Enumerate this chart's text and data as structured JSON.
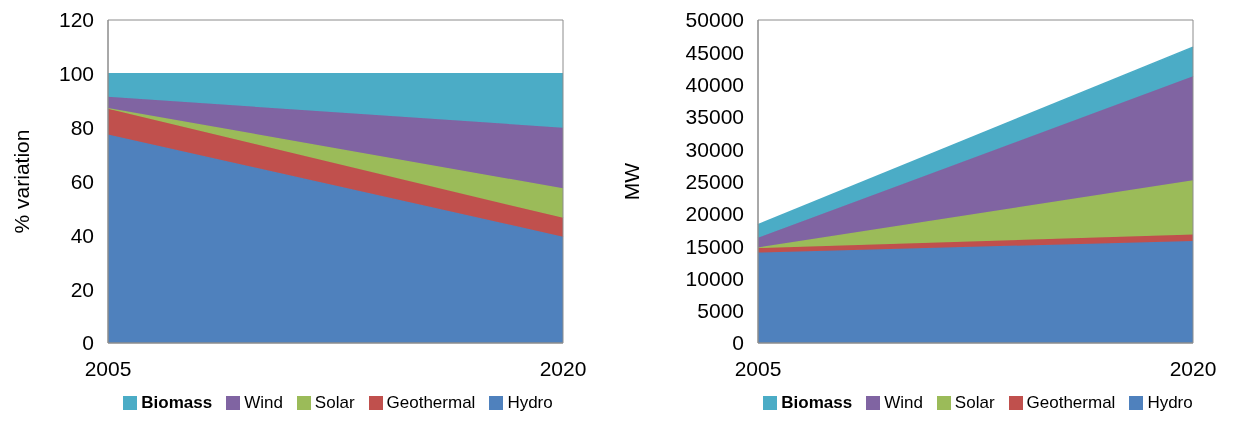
{
  "chart_data": [
    {
      "type": "area",
      "stacked": true,
      "categories": [
        "2005",
        "2020"
      ],
      "ylabel": "% variation",
      "ylim": [
        0,
        120
      ],
      "yticks": [
        0,
        20,
        40,
        60,
        80,
        100,
        120
      ],
      "grid": true,
      "legend": "bottom",
      "series": [
        {
          "name": "Hydro",
          "color": "#4f81bd",
          "values": [
            77.5,
            39.5
          ]
        },
        {
          "name": "Geothermal",
          "color": "#c0504d",
          "values": [
            9.5,
            7
          ]
        },
        {
          "name": "Solar",
          "color": "#9bbb59",
          "values": [
            0.3,
            11
          ]
        },
        {
          "name": "Wind",
          "color": "#8064a2",
          "values": [
            4.2,
            22.5
          ]
        },
        {
          "name": "Biomass",
          "color": "#4bacc6",
          "values": [
            8.5,
            20
          ]
        }
      ]
    },
    {
      "type": "area",
      "stacked": true,
      "categories": [
        "2005",
        "2020"
      ],
      "ylabel": "MW",
      "ylim": [
        0,
        50000
      ],
      "yticks": [
        0,
        5000,
        10000,
        15000,
        20000,
        25000,
        30000,
        35000,
        40000,
        45000,
        50000
      ],
      "grid": true,
      "legend": "bottom",
      "series": [
        {
          "name": "Hydro",
          "color": "#4f81bd",
          "values": [
            14000,
            15800
          ]
        },
        {
          "name": "Geothermal",
          "color": "#c0504d",
          "values": [
            700,
            1000
          ]
        },
        {
          "name": "Solar",
          "color": "#9bbb59",
          "values": [
            100,
            8400
          ]
        },
        {
          "name": "Wind",
          "color": "#8064a2",
          "values": [
            1500,
            16100
          ]
        },
        {
          "name": "Biomass",
          "color": "#4bacc6",
          "values": [
            2000,
            4500
          ]
        }
      ]
    }
  ]
}
